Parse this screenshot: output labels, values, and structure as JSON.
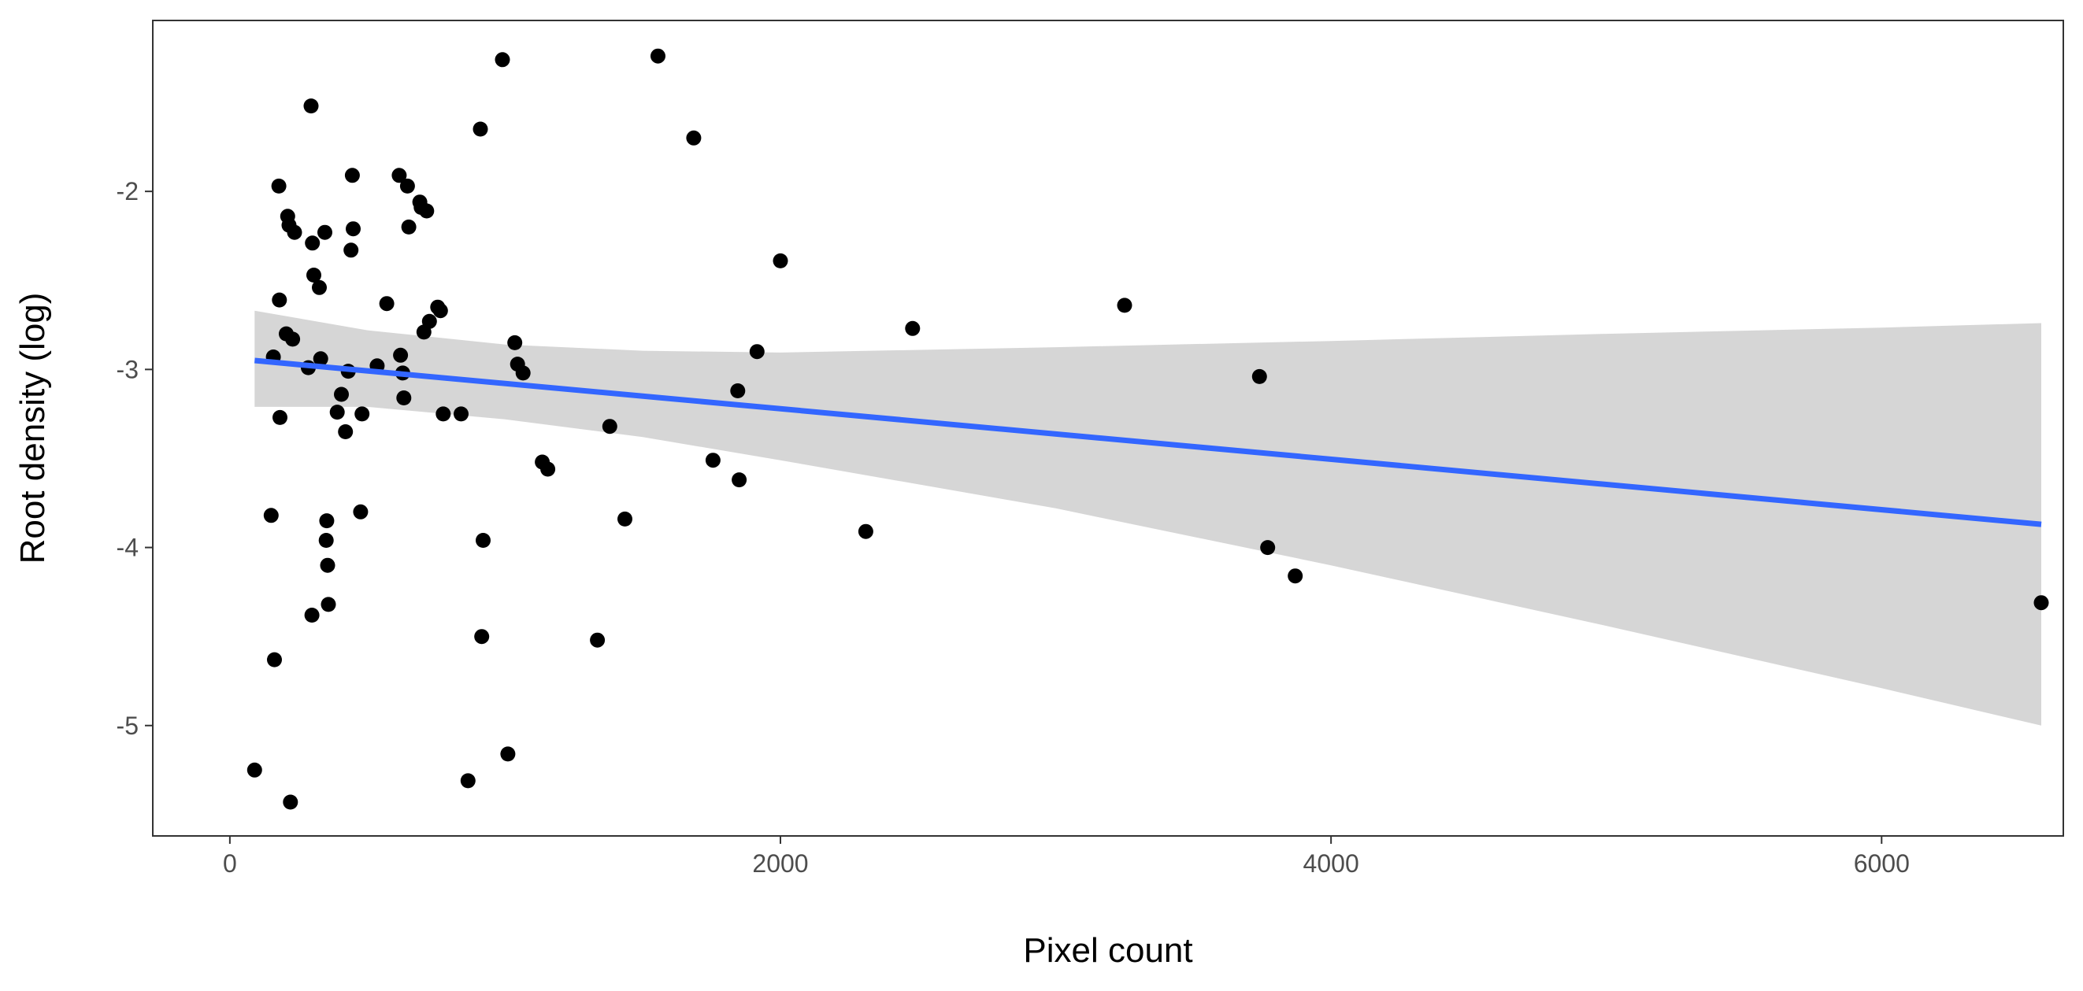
{
  "chart_data": {
    "type": "scatter",
    "title": "",
    "xlabel": "Pixel count",
    "ylabel": "Root density (log)",
    "xlim": [
      -280,
      6660
    ],
    "ylim": [
      -5.62,
      -1.04
    ],
    "x_ticks": [
      0,
      2000,
      4000,
      6000
    ],
    "x_tick_labels": [
      "0",
      "2000",
      "4000",
      "6000"
    ],
    "y_ticks": [
      -5,
      -4,
      -3,
      -2
    ],
    "y_tick_labels": [
      "-5",
      "-4",
      "-3",
      "-2"
    ],
    "grid": false,
    "legend": "none",
    "colors": {
      "points": "#000000",
      "fit_line": "#3366ff",
      "confidence_band": "#d5d5d5",
      "axis": "#333333"
    },
    "series": [
      {
        "points": [
          [
            90,
            -5.25
          ],
          [
            150,
            -3.82
          ],
          [
            158,
            -2.93
          ],
          [
            162,
            -4.63
          ],
          [
            178,
            -1.97
          ],
          [
            180,
            -2.61
          ],
          [
            182,
            -3.27
          ],
          [
            205,
            -2.8
          ],
          [
            210,
            -2.14
          ],
          [
            215,
            -2.19
          ],
          [
            220,
            -5.43
          ],
          [
            228,
            -2.83
          ],
          [
            235,
            -2.23
          ],
          [
            285,
            -2.99
          ],
          [
            295,
            -1.52
          ],
          [
            298,
            -4.38
          ],
          [
            300,
            -2.29
          ],
          [
            305,
            -2.47
          ],
          [
            325,
            -2.54
          ],
          [
            330,
            -2.94
          ],
          [
            345,
            -2.23
          ],
          [
            350,
            -3.96
          ],
          [
            352,
            -3.85
          ],
          [
            355,
            -4.1
          ],
          [
            358,
            -4.32
          ],
          [
            390,
            -3.24
          ],
          [
            405,
            -3.14
          ],
          [
            420,
            -3.35
          ],
          [
            430,
            -3.01
          ],
          [
            440,
            -2.33
          ],
          [
            445,
            -1.91
          ],
          [
            448,
            -2.21
          ],
          [
            475,
            -3.8
          ],
          [
            480,
            -3.25
          ],
          [
            535,
            -2.98
          ],
          [
            570,
            -2.63
          ],
          [
            615,
            -1.91
          ],
          [
            620,
            -2.92
          ],
          [
            628,
            -3.02
          ],
          [
            632,
            -3.16
          ],
          [
            645,
            -1.97
          ],
          [
            650,
            -2.2
          ],
          [
            690,
            -2.06
          ],
          [
            695,
            -2.09
          ],
          [
            705,
            -2.79
          ],
          [
            715,
            -2.11
          ],
          [
            725,
            -2.73
          ],
          [
            755,
            -2.65
          ],
          [
            765,
            -2.67
          ],
          [
            775,
            -3.25
          ],
          [
            840,
            -3.25
          ],
          [
            865,
            -5.31
          ],
          [
            910,
            -1.65
          ],
          [
            915,
            -4.5
          ],
          [
            920,
            -3.96
          ],
          [
            990,
            -1.26
          ],
          [
            1010,
            -5.16
          ],
          [
            1035,
            -2.85
          ],
          [
            1045,
            -2.97
          ],
          [
            1065,
            -3.02
          ],
          [
            1135,
            -3.52
          ],
          [
            1155,
            -3.56
          ],
          [
            1335,
            -4.52
          ],
          [
            1380,
            -3.32
          ],
          [
            1435,
            -3.84
          ],
          [
            1555,
            -1.24
          ],
          [
            1685,
            -1.7
          ],
          [
            1755,
            -3.51
          ],
          [
            1845,
            -3.12
          ],
          [
            1850,
            -3.62
          ],
          [
            1915,
            -2.9
          ],
          [
            2000,
            -2.39
          ],
          [
            2310,
            -3.91
          ],
          [
            2480,
            -2.77
          ],
          [
            3250,
            -2.64
          ],
          [
            3740,
            -3.04
          ],
          [
            3770,
            -4.0
          ],
          [
            3870,
            -4.16
          ],
          [
            6580,
            -4.31
          ]
        ]
      }
    ],
    "fit": {
      "method": "linear",
      "x_range": [
        90,
        6580
      ],
      "line": [
        [
          90,
          -2.95
        ],
        [
          6580,
          -3.87
        ]
      ],
      "ci_upper": [
        [
          90,
          -2.67
        ],
        [
          500,
          -2.78
        ],
        [
          1000,
          -2.86
        ],
        [
          1500,
          -2.895
        ],
        [
          2000,
          -2.905
        ],
        [
          3000,
          -2.875
        ],
        [
          4000,
          -2.84
        ],
        [
          5000,
          -2.8
        ],
        [
          6000,
          -2.765
        ],
        [
          6580,
          -2.74
        ]
      ],
      "ci_lower": [
        [
          90,
          -3.21
        ],
        [
          500,
          -3.21
        ],
        [
          1000,
          -3.28
        ],
        [
          1500,
          -3.38
        ],
        [
          2000,
          -3.51
        ],
        [
          3000,
          -3.78
        ],
        [
          4000,
          -4.1
        ],
        [
          5000,
          -4.44
        ],
        [
          6000,
          -4.79
        ],
        [
          6580,
          -5.0
        ]
      ]
    }
  }
}
